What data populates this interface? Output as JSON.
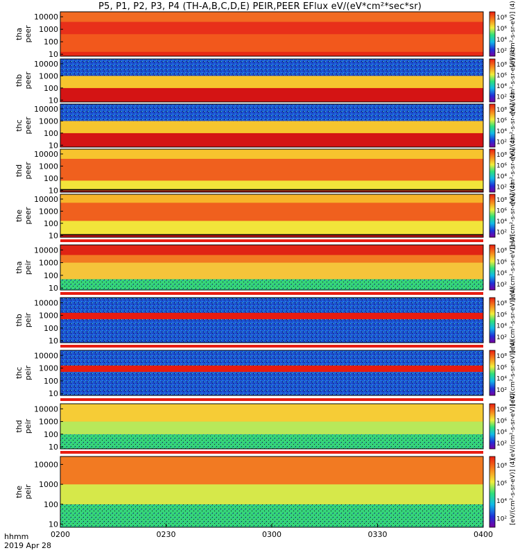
{
  "title": "P5, P1, P2, P3, P4 (TH-A,B,C,D,E) PEIR,PEER EFlux eV/(eV*cm²*sec*sr)",
  "x_axis": {
    "header_line1": "hhmm",
    "header_line2": "2019 Apr 28",
    "tick_labels": [
      "0200",
      "0230",
      "0300",
      "0330",
      "0400"
    ]
  },
  "y_axis": {
    "tick_labels": [
      "10",
      "100",
      "1000",
      "10000"
    ],
    "scale": "log"
  },
  "colorbar": {
    "tick_labels": [
      "10²",
      "10⁴",
      "10⁶",
      "10⁸"
    ],
    "scale": "log",
    "colors": [
      "#7a00a0",
      "#1f2fd8",
      "#11b8e8",
      "#2fe07a",
      "#f2ee3c",
      "#f7901e",
      "#e81c10"
    ]
  },
  "chart_data": {
    "type": "heatmap",
    "title": "P5, P1, P2, P3, P4 (TH-A,B,C,D,E) PEIR,PEER EFlux eV/(eV*cm²*sec*sr)",
    "x_range": [
      "02:00",
      "04:00"
    ],
    "x_tick_labels": [
      "0200",
      "0230",
      "0300",
      "0330",
      "0400"
    ],
    "y_scale": "log",
    "y_range_eV": [
      7,
      25000
    ],
    "y_tick_labels": [
      "10",
      "100",
      "1000",
      "10000"
    ],
    "color_scale": "log",
    "color_range": [
      10,
      1000000000
    ],
    "panels": [
      {
        "label_1": "tha",
        "label_2": "peer",
        "cbar_unit": "[eV/(cm²-s-sr-eV)] (4)",
        "dominant_level": "high (red/orange)",
        "low_energy_boundary": false
      },
      {
        "label_1": "thb",
        "label_2": "peer",
        "cbar_unit": "[eV/(cm²-s-sr-eV)] (4)",
        "dominant_level": "red band below 100 eV, yellow 100-1000 eV, blue noise above",
        "low_energy_boundary": false
      },
      {
        "label_1": "thc",
        "label_2": "peer",
        "cbar_unit": "[eV/(cm²-s-sr-eV)] (4)",
        "dominant_level": "red band below 100 eV, yellow 100-1000 eV, blue noise above",
        "low_energy_boundary": false
      },
      {
        "label_1": "thd",
        "label_2": "peer",
        "cbar_unit": "[eV/(cm²-s-sr-eV)] (4)",
        "dominant_level": "orange-red 100-5000 eV",
        "low_energy_boundary": true
      },
      {
        "label_1": "the",
        "label_2": "peer",
        "cbar_unit": "[eV/(cm²-s-sr-eV)] (4)",
        "dominant_level": "orange-red 200-5000 eV",
        "low_energy_boundary": true
      },
      {
        "label_1": "tha",
        "label_2": "peir",
        "cbar_unit": "[eV/(cm²-s-sr-eV)] (4)",
        "dominant_level": "red above 3000 eV fading to green below 100 eV",
        "low_energy_boundary": false
      },
      {
        "label_1": "thb",
        "label_2": "peir",
        "cbar_unit": "[eV/(cm²-s-sr-eV)] (4)",
        "dominant_level": "red band near 1000 eV, blue noise elsewhere",
        "low_energy_boundary": false
      },
      {
        "label_1": "thc",
        "label_2": "peir",
        "cbar_unit": "[eV/(cm²-s-sr-eV)] (4)",
        "dominant_level": "red band near 1000 eV, blue noise elsewhere",
        "low_energy_boundary": false
      },
      {
        "label_1": "thd",
        "label_2": "peir",
        "cbar_unit": "[eV/(cm²-s-sr-eV)] (4)",
        "dominant_level": "yellow/orange above 1000 eV, green-black below 100 eV",
        "low_energy_boundary": false
      },
      {
        "label_1": "the",
        "label_2": "peir",
        "cbar_unit": "[eV/(cm²-s-sr-eV)] (4)",
        "dominant_level": "orange-red 1000-10000 eV, green below 100 eV",
        "low_energy_boundary": false
      }
    ]
  }
}
